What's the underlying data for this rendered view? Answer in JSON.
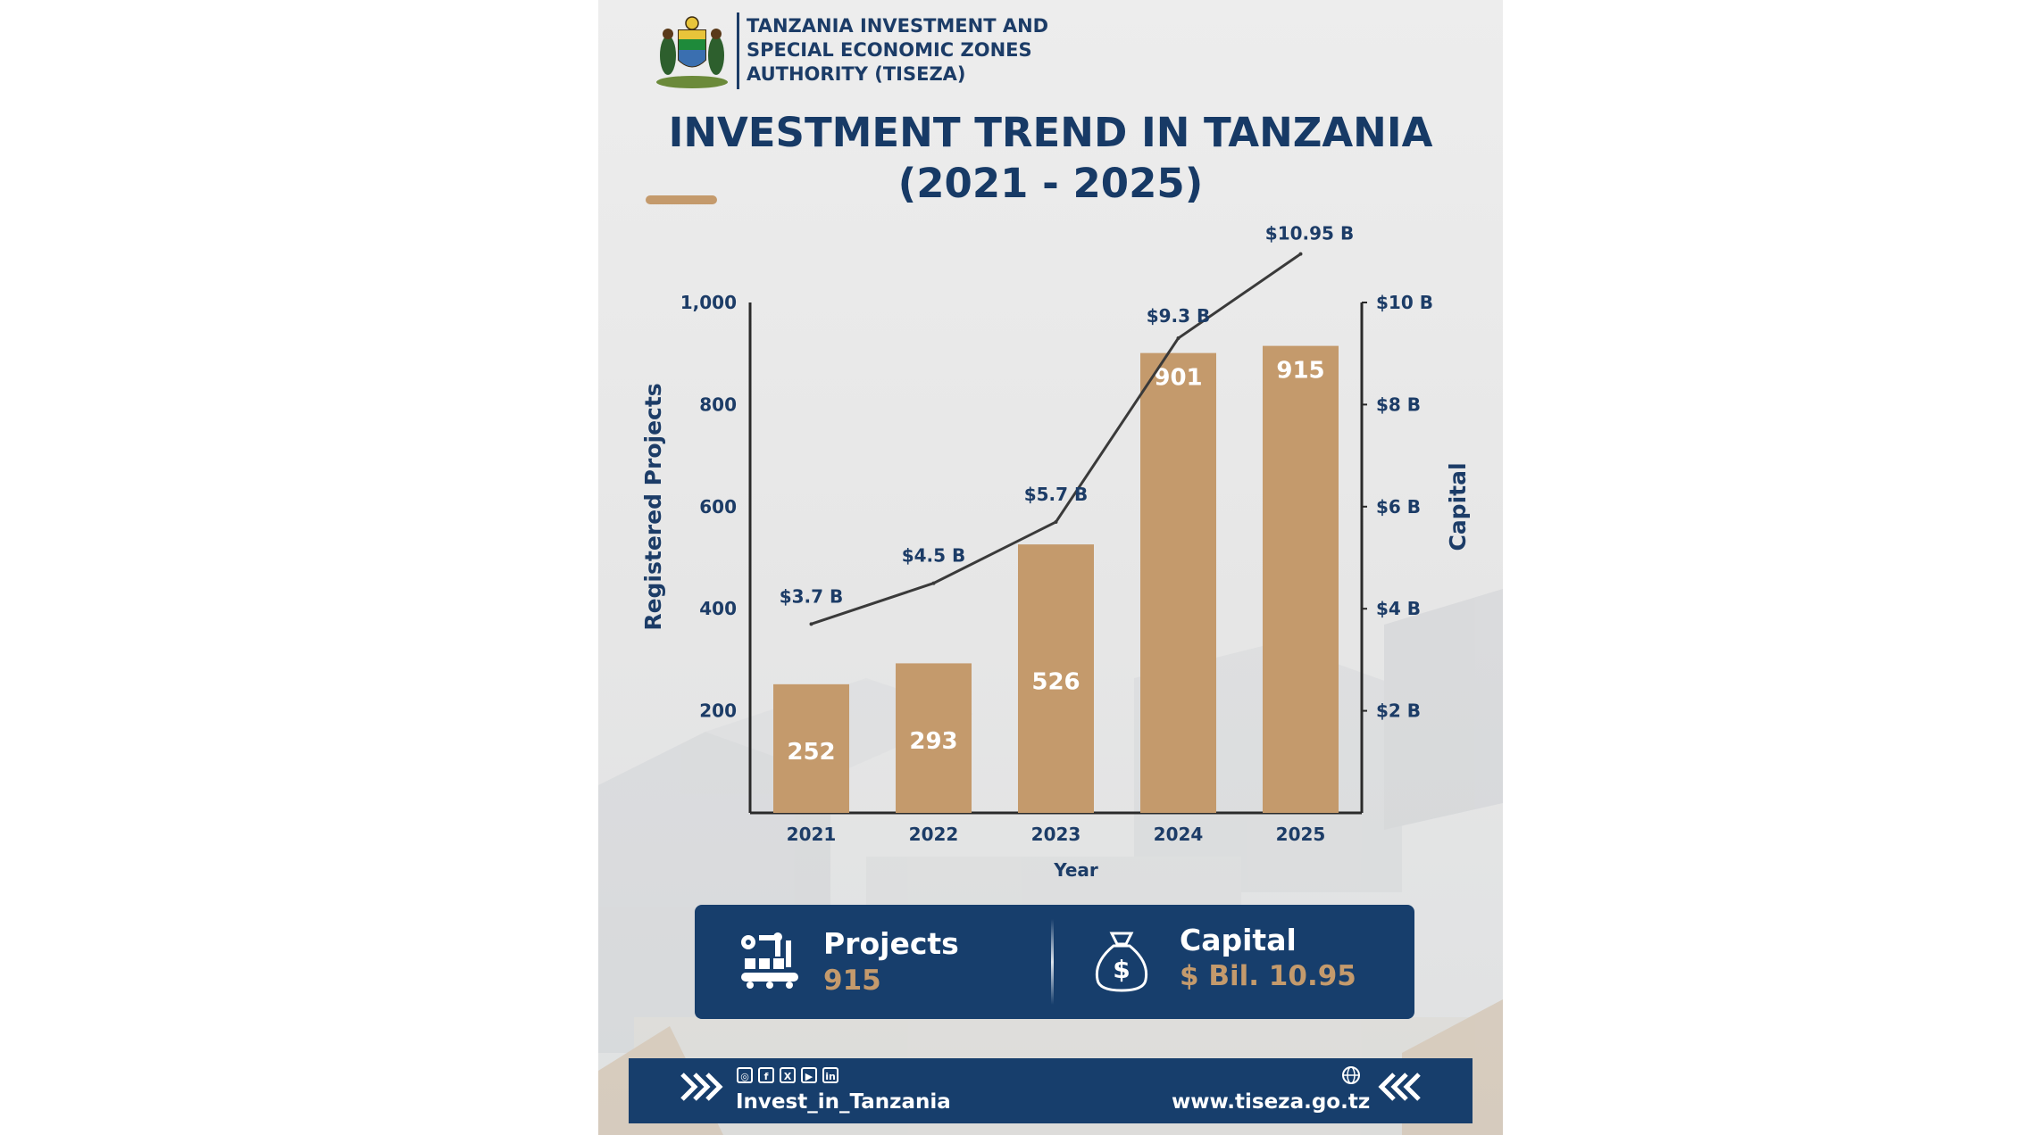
{
  "org": {
    "name": "TANZANIA INVESTMENT  AND\nSPECIAL ECONOMIC ZONES\nAUTHORITY (TISEZA)"
  },
  "title": "INVESTMENT TREND IN TANZANIA\n(2021 - 2025)",
  "colors": {
    "navy": "#173e6c",
    "bar": "#c49a6c",
    "line": "#3a3a3a",
    "text": "#1c3c67"
  },
  "chart_data": {
    "type": "bar",
    "categories": [
      "2021",
      "2022",
      "2023",
      "2024",
      "2025"
    ],
    "series": [
      {
        "name": "Registered Projects",
        "axis": "left",
        "type": "bar",
        "values": [
          252,
          293,
          526,
          901,
          915
        ],
        "value_labels": [
          "252",
          "293",
          "526",
          "901",
          "915"
        ]
      },
      {
        "name": "Capital",
        "axis": "right",
        "type": "line",
        "values": [
          3.7,
          4.5,
          5.7,
          9.3,
          10.95
        ],
        "value_labels": [
          "$3.7 B",
          "$4.5 B",
          "$5.7 B",
          "$9.3 B",
          "$10.95 B"
        ]
      }
    ],
    "xlabel": "Year",
    "ylabel": "Registered Projects",
    "y2label": "Capital",
    "ylim": [
      0,
      1000
    ],
    "y2lim": [
      0,
      10
    ],
    "yticks": [
      200,
      400,
      600,
      800,
      1000
    ],
    "ytick_labels": [
      "200",
      "400",
      "600",
      "800",
      "1,000"
    ],
    "y2ticks": [
      2,
      4,
      6,
      8,
      10
    ],
    "y2tick_labels": [
      "$2 B",
      "$4 B",
      "$6 B",
      "$8 B",
      "$10 B"
    ],
    "grid": false,
    "legend": "none"
  },
  "summary": {
    "projects_label": "Projects",
    "projects_value": "915",
    "capital_label": "Capital",
    "capital_value": "$ Bil. 10.95",
    "projects_icon": "robot-arm-factory-icon",
    "capital_icon": "money-bag-icon"
  },
  "footer": {
    "handle": "Invest_in_Tanzania",
    "url": "www.tiseza.go.tz",
    "social_icons": [
      "instagram-icon",
      "facebook-icon",
      "x-icon",
      "youtube-icon",
      "linkedin-icon"
    ]
  }
}
